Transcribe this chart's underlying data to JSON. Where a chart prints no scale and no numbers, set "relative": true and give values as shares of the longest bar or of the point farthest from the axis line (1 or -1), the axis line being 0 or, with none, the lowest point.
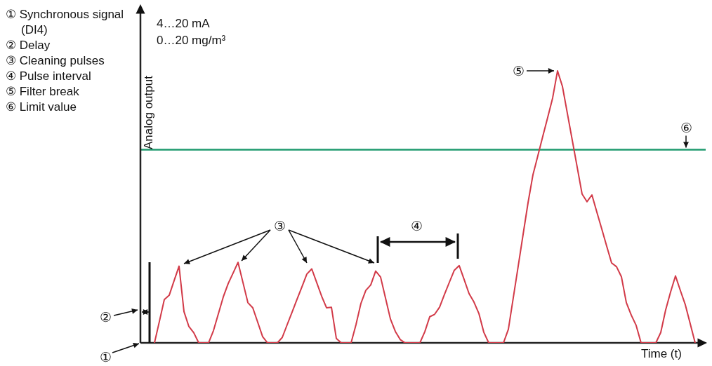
{
  "chart_data": {
    "type": "line",
    "subtitle": "4…20 mA\n0…20 mg/m³",
    "xlabel": "Time (t)",
    "ylabel": "Analog output",
    "relative": true,
    "legend": false,
    "marker": "none",
    "line_style": "solid",
    "categories": [
      null,
      null,
      null,
      null,
      null,
      null,
      null,
      null,
      null,
      null,
      null,
      null,
      null,
      null,
      null,
      null,
      null,
      null,
      null,
      null,
      null,
      null,
      null,
      null,
      null,
      null,
      null,
      null,
      null,
      null,
      null,
      null,
      null,
      null,
      null,
      null,
      null,
      null,
      null,
      null,
      null,
      null,
      null,
      null,
      null,
      null,
      null,
      null,
      null,
      null,
      null,
      null,
      null,
      null,
      null,
      null,
      null,
      null,
      null,
      null,
      null,
      null,
      null,
      null,
      null,
      null,
      null,
      null,
      null,
      null,
      null,
      null,
      null,
      null,
      null,
      null,
      null,
      null,
      null,
      null,
      null,
      null,
      null,
      null,
      null,
      null,
      null,
      null,
      null,
      null,
      null,
      null,
      null,
      null,
      null,
      null,
      null,
      null,
      null,
      null,
      null,
      null,
      null,
      null,
      null,
      null,
      null,
      null,
      null,
      null,
      null
    ],
    "series": [
      {
        "color": "#d23a48",
        "values": [
          0,
          0.079,
          0.159,
          0.175,
          0.229,
          0.282,
          0.115,
          0.06,
          0.037,
          0,
          0,
          0,
          0.045,
          0.107,
          0.169,
          0.218,
          0.257,
          0.296,
          0.222,
          0.148,
          0.129,
          0.076,
          0.023,
          0,
          0,
          0,
          0.02,
          0.067,
          0.113,
          0.16,
          0.206,
          0.253,
          0.272,
          0.222,
          0.172,
          0.129,
          0.131,
          0.016,
          0,
          0,
          0,
          0.067,
          0.145,
          0.193,
          0.213,
          0.264,
          0.242,
          0.165,
          0.088,
          0.042,
          0.012,
          0,
          0,
          0,
          0,
          0.041,
          0.096,
          0.105,
          0.131,
          0.178,
          0.223,
          0.267,
          0.284,
          0.233,
          0.181,
          0.15,
          0.108,
          0.039,
          0,
          0,
          0,
          0,
          0.05,
          0.166,
          0.282,
          0.399,
          0.515,
          0.618,
          0.688,
          0.759,
          0.829,
          0.9,
          1,
          0.943,
          0.844,
          0.745,
          0.646,
          0.547,
          0.519,
          0.544,
          0.481,
          0.419,
          0.356,
          0.294,
          0.28,
          0.243,
          0.148,
          0.102,
          0.064,
          0,
          0,
          0,
          0,
          0.038,
          0.121,
          0.187,
          0.246,
          0.192,
          0.14,
          0.07,
          0
        ]
      }
    ],
    "ref_lines": [
      {
        "axis": "y",
        "value": 0.71,
        "color": "#1e9a6e",
        "label": "⑥"
      }
    ],
    "annotations": [
      "① Synchronous signal (DI4)",
      "② Delay",
      "③ Cleaning pulses",
      "④ Pulse interval",
      "⑤ Filter break",
      "⑥ Limit value",
      "①",
      "②",
      "③",
      "④",
      "⑤"
    ]
  }
}
